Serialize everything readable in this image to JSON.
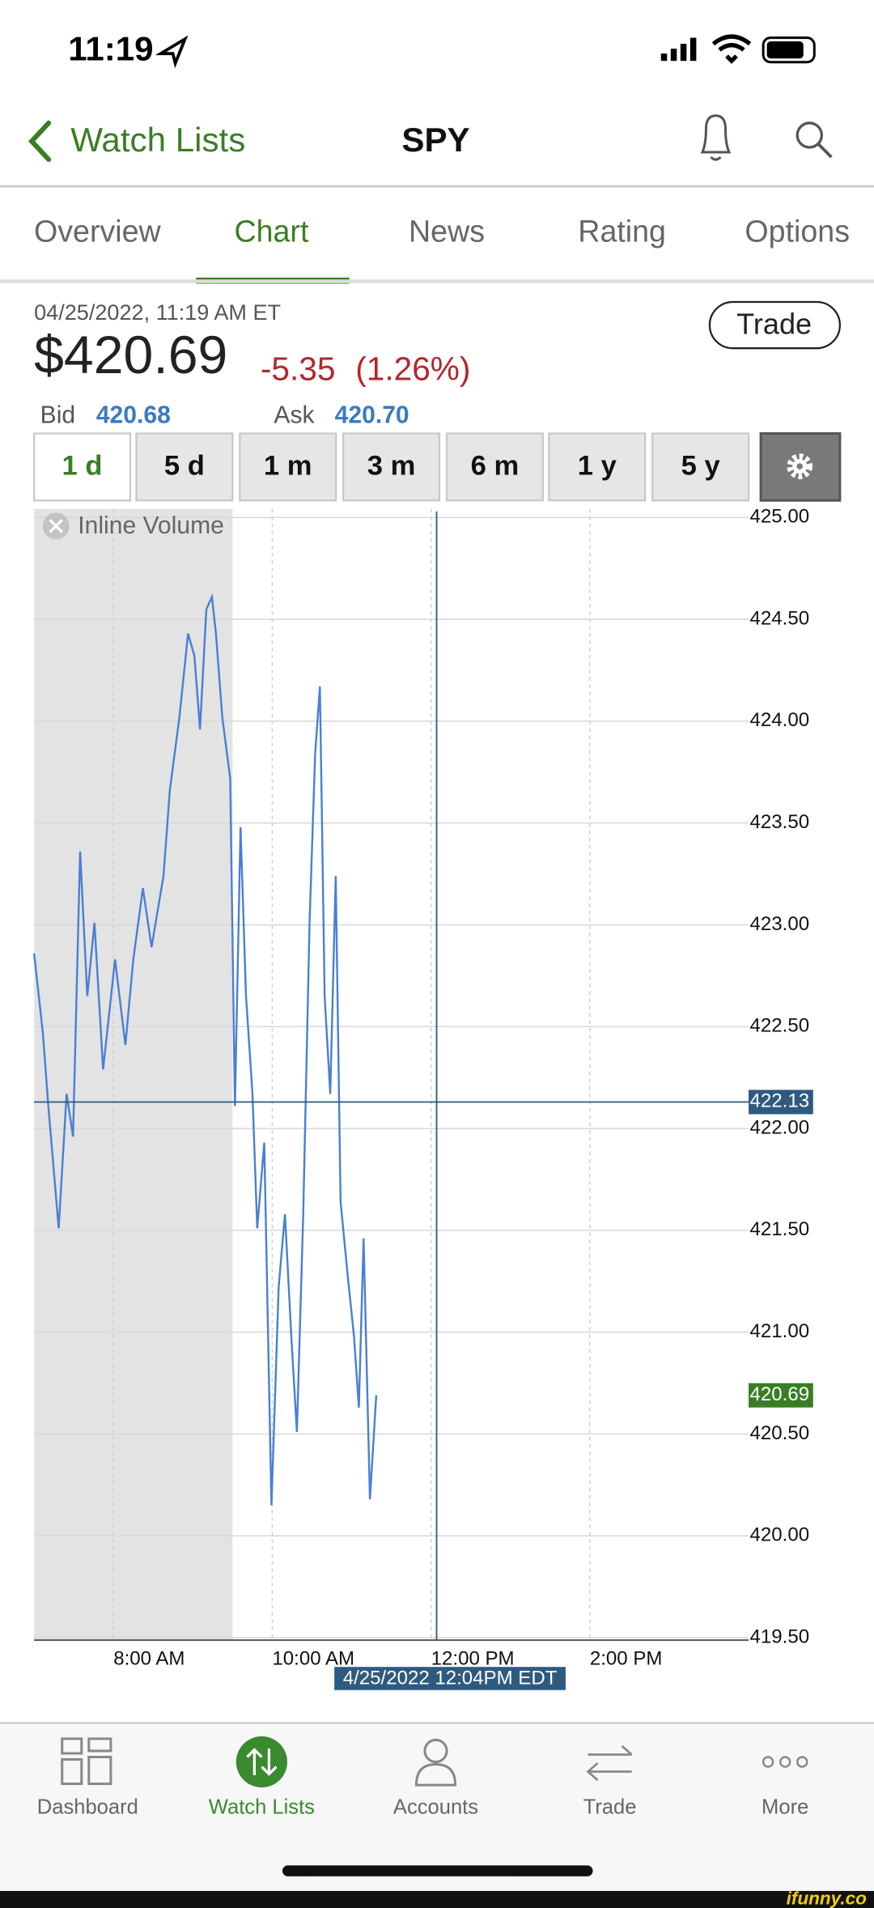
{
  "status_bar": {
    "time": "11:19"
  },
  "header": {
    "back": "Watch Lists",
    "title": "SPY"
  },
  "tabs": [
    "Overview",
    "Chart",
    "News",
    "Rating",
    "Options"
  ],
  "active_tab": 1,
  "quote": {
    "timestamp": "04/25/2022, 11:19 AM ET",
    "price": "$420.69",
    "change": "-5.35",
    "change_pct": "(1.26%)",
    "trade_button": "Trade",
    "bid_label": "Bid",
    "bid": "420.68",
    "ask_label": "Ask",
    "ask": "420.70"
  },
  "ranges": [
    "1 d",
    "5 d",
    "1 m",
    "3 m",
    "6 m",
    "1 y",
    "5 y"
  ],
  "active_range": 0,
  "chart_data": {
    "type": "line",
    "legend": "Inline Volume",
    "color": "#4a7fd4",
    "x": [
      7.0,
      7.11,
      7.18,
      7.31,
      7.41,
      7.49,
      7.58,
      7.67,
      7.76,
      7.87,
      8.02,
      8.15,
      8.25,
      8.37,
      8.48,
      8.63,
      8.71,
      8.83,
      8.94,
      9.02,
      9.09,
      9.17,
      9.24,
      9.29,
      9.37,
      9.47,
      9.53,
      9.6,
      9.67,
      9.75,
      9.81,
      9.9,
      9.99,
      10.08,
      10.16,
      10.24,
      10.31,
      10.39,
      10.47,
      10.54,
      10.6,
      10.66,
      10.73,
      10.8,
      10.86,
      10.95,
      11.03,
      11.09,
      11.15,
      11.23,
      11.31
    ],
    "values": [
      422.86,
      422.47,
      422.11,
      421.51,
      422.17,
      421.96,
      423.36,
      422.65,
      423.01,
      422.29,
      422.83,
      422.41,
      422.83,
      423.18,
      422.89,
      423.24,
      423.66,
      424.02,
      424.43,
      424.32,
      423.96,
      424.55,
      424.61,
      424.43,
      424.02,
      423.72,
      422.11,
      423.48,
      422.65,
      422.17,
      421.51,
      421.93,
      420.15,
      421.22,
      421.58,
      420.98,
      420.51,
      421.58,
      423.01,
      423.84,
      424.17,
      422.65,
      422.17,
      423.24,
      421.64,
      421.28,
      420.98,
      420.63,
      421.46,
      420.18,
      420.69
    ],
    "xlim": [
      7,
      16
    ],
    "xticks": [
      {
        "value": 8,
        "label": "8:00 AM"
      },
      {
        "value": 10,
        "label": "10:00 AM"
      },
      {
        "value": 12,
        "label": "12:00 PM"
      },
      {
        "value": 14,
        "label": "2:00 PM"
      }
    ],
    "ylim": [
      419.5,
      425
    ],
    "yticks": [
      {
        "value": 425,
        "label": "425.00"
      },
      {
        "value": 424.5,
        "label": "424.50"
      },
      {
        "value": 424,
        "label": "424.00"
      },
      {
        "value": 423.5,
        "label": "423.50"
      },
      {
        "value": 423,
        "label": "423.00"
      },
      {
        "value": 422.5,
        "label": "422.50"
      },
      {
        "value": 422,
        "label": "422.00"
      },
      {
        "value": 421.5,
        "label": "421.50"
      },
      {
        "value": 421,
        "label": "421.00"
      },
      {
        "value": 420.5,
        "label": "420.50"
      },
      {
        "value": 420,
        "label": "420.00"
      },
      {
        "value": 419.5,
        "label": "419.50"
      }
    ],
    "grid": true,
    "shaded_xrange": [
      7,
      9.5
    ],
    "last_price": 420.69,
    "crosshair": {
      "x": 12.07,
      "x_label": "4/25/2022 12:04PM EDT",
      "y": 422.13
    }
  },
  "tab_bar": [
    "Dashboard",
    "Watch Lists",
    "Accounts",
    "Trade",
    "More"
  ],
  "active_tab_bar": 1,
  "watermark": "ifunny.co"
}
